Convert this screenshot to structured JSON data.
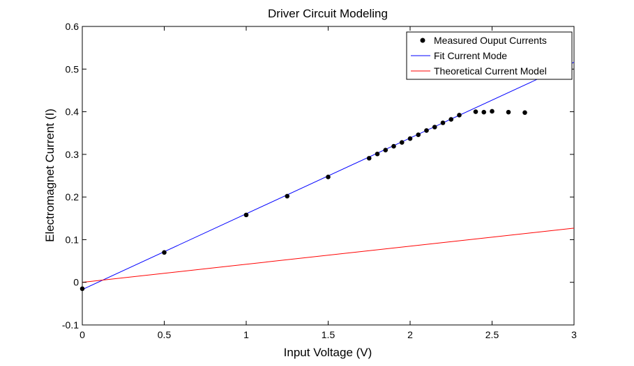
{
  "chart_data": {
    "type": "scatter",
    "title": "Driver Circuit Modeling",
    "xlabel": "Input Voltage (V)",
    "ylabel": "Electromagnet Current (I)",
    "xlim": [
      0,
      3
    ],
    "ylim": [
      -0.1,
      0.6
    ],
    "xticks": [
      0,
      0.5,
      1,
      1.5,
      2,
      2.5,
      3
    ],
    "xtick_labels": [
      "0",
      "0.5",
      "1",
      "1.5",
      "2",
      "2.5",
      "3"
    ],
    "yticks": [
      -0.1,
      0,
      0.1,
      0.2,
      0.3,
      0.4,
      0.5,
      0.6
    ],
    "ytick_labels": [
      "-0.1",
      "0",
      "0.1",
      "0.2",
      "0.3",
      "0.4",
      "0.5",
      "0.6"
    ],
    "grid": false,
    "legend_position": "top-right",
    "series": [
      {
        "name": "Measured Ouput Currents",
        "kind": "markers",
        "color": "#000000",
        "x": [
          0,
          0.5,
          1,
          1.25,
          1.5,
          1.75,
          1.8,
          1.85,
          1.9,
          1.95,
          2,
          2.05,
          2.1,
          2.15,
          2.2,
          2.25,
          2.3,
          2.4,
          2.45,
          2.5,
          2.6,
          2.7
        ],
        "y": [
          -0.015,
          0.07,
          0.158,
          0.202,
          0.247,
          0.291,
          0.301,
          0.31,
          0.319,
          0.328,
          0.337,
          0.346,
          0.356,
          0.364,
          0.374,
          0.382,
          0.392,
          0.4,
          0.399,
          0.401,
          0.399,
          0.398
        ]
      },
      {
        "name": "Fit Current Mode",
        "kind": "line",
        "color": "#0000ff",
        "x": [
          0,
          3
        ],
        "y": [
          -0.017,
          0.516
        ]
      },
      {
        "name": "Theoretical Current Model",
        "kind": "line",
        "color": "#ff0000",
        "x": [
          0,
          3
        ],
        "y": [
          0,
          0.127
        ]
      }
    ]
  }
}
